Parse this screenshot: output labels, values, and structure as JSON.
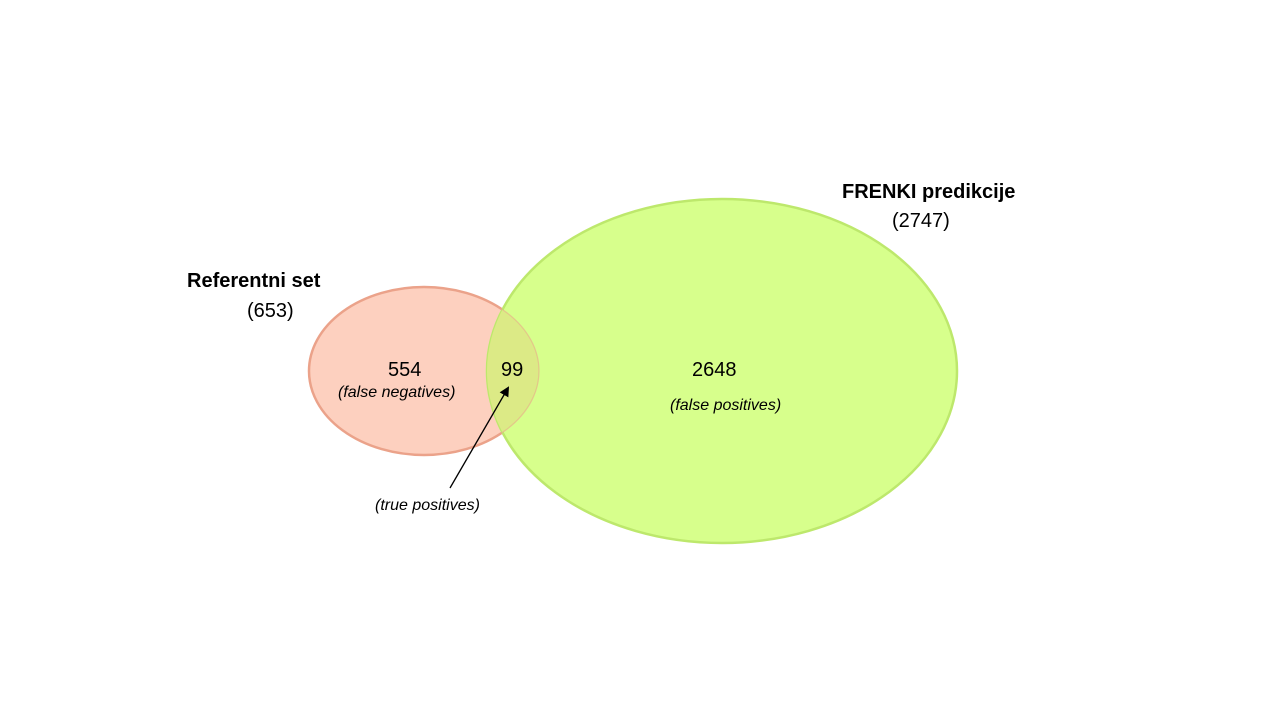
{
  "diagram": {
    "type": "venn",
    "sets": [
      {
        "id": "reference",
        "title": "Referentni set",
        "count": "(653)",
        "fill_color": "#fdd0bf",
        "stroke_color": "#eba38a"
      },
      {
        "id": "predictions",
        "title": "FRENKI predikcije",
        "count": "(2747)",
        "fill_color": "#d7ff8c",
        "stroke_color": "#bde86c"
      }
    ],
    "regions": {
      "reference_only": {
        "value": "554",
        "note": "(false negatives)"
      },
      "intersection": {
        "value": "99",
        "note": "(true positives)"
      },
      "predictions_only": {
        "value": "2648",
        "note": "(false positives)"
      }
    }
  }
}
